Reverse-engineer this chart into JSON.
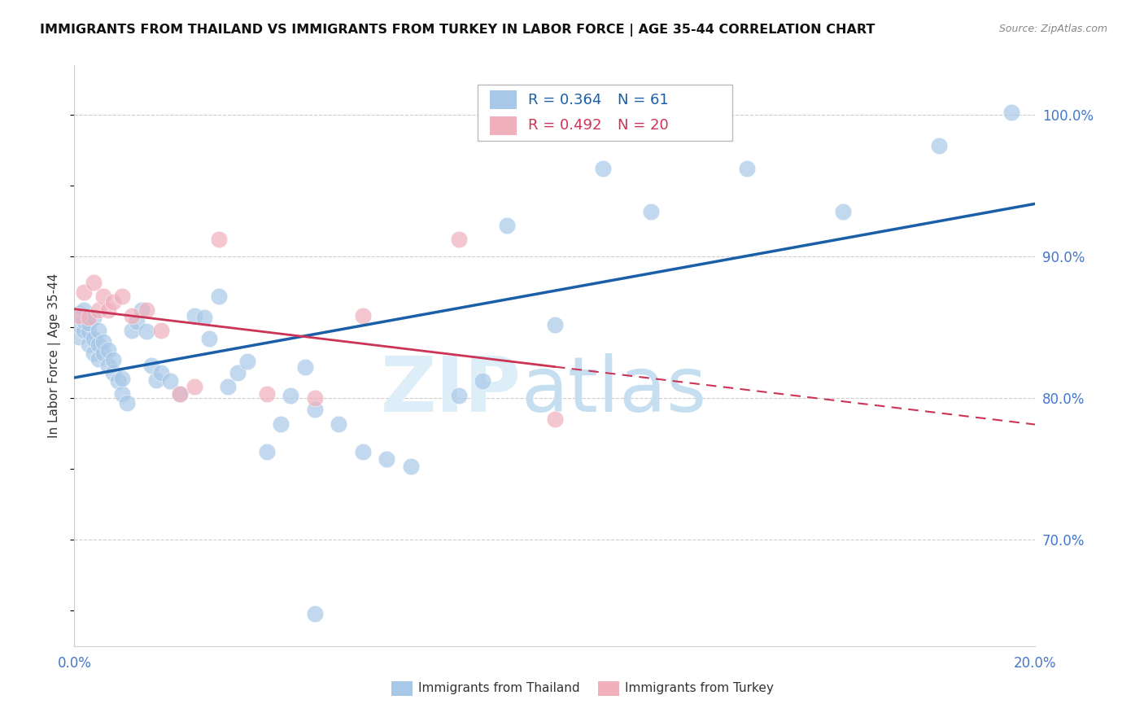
{
  "title": "IMMIGRANTS FROM THAILAND VS IMMIGRANTS FROM TURKEY IN LABOR FORCE | AGE 35-44 CORRELATION CHART",
  "source": "Source: ZipAtlas.com",
  "ylabel_left": "In Labor Force | Age 35-44",
  "x_min": 0.0,
  "x_max": 0.2,
  "y_min": 0.625,
  "y_max": 1.035,
  "right_y_ticks": [
    0.7,
    0.8,
    0.9,
    1.0
  ],
  "right_y_labels": [
    "70.0%",
    "80.0%",
    "90.0%",
    "100.0%"
  ],
  "x_ticks": [
    0.0,
    0.04,
    0.08,
    0.12,
    0.16,
    0.2
  ],
  "x_tick_labels": [
    "0.0%",
    "",
    "",
    "",
    "",
    "20.0%"
  ],
  "color_thailand": "#a8c8e8",
  "color_turkey": "#f0b0bc",
  "line_color_thailand": "#1a5fa8",
  "line_color_turkey": "#cc3355",
  "r_thailand": "0.364",
  "n_thailand": "61",
  "r_turkey": "0.492",
  "n_turkey": "20",
  "legend_label_thailand": "Immigrants from Thailand",
  "legend_label_turkey": "Immigrants from Turkey",
  "thailand_x": [
    0.001,
    0.001,
    0.001,
    0.002,
    0.002,
    0.002,
    0.003,
    0.003,
    0.003,
    0.004,
    0.004,
    0.004,
    0.005,
    0.005,
    0.005,
    0.006,
    0.006,
    0.007,
    0.007,
    0.008,
    0.008,
    0.009,
    0.01,
    0.01,
    0.011,
    0.012,
    0.013,
    0.014,
    0.015,
    0.016,
    0.017,
    0.018,
    0.02,
    0.022,
    0.025,
    0.027,
    0.028,
    0.03,
    0.032,
    0.034,
    0.036,
    0.04,
    0.043,
    0.045,
    0.048,
    0.05,
    0.055,
    0.06,
    0.065,
    0.07,
    0.08,
    0.085,
    0.09,
    0.1,
    0.11,
    0.12,
    0.14,
    0.16,
    0.18,
    0.195,
    0.05
  ],
  "thailand_y": [
    0.843,
    0.852,
    0.86,
    0.848,
    0.855,
    0.862,
    0.838,
    0.847,
    0.853,
    0.832,
    0.842,
    0.857,
    0.828,
    0.838,
    0.848,
    0.832,
    0.84,
    0.823,
    0.834,
    0.818,
    0.827,
    0.812,
    0.803,
    0.814,
    0.797,
    0.848,
    0.854,
    0.862,
    0.847,
    0.823,
    0.813,
    0.818,
    0.812,
    0.803,
    0.858,
    0.857,
    0.842,
    0.872,
    0.808,
    0.818,
    0.826,
    0.762,
    0.782,
    0.802,
    0.822,
    0.792,
    0.782,
    0.762,
    0.757,
    0.752,
    0.802,
    0.812,
    0.922,
    0.852,
    0.962,
    0.932,
    0.962,
    0.932,
    0.978,
    1.002,
    0.648
  ],
  "turkey_x": [
    0.001,
    0.002,
    0.003,
    0.004,
    0.005,
    0.006,
    0.007,
    0.008,
    0.01,
    0.012,
    0.015,
    0.018,
    0.022,
    0.025,
    0.03,
    0.04,
    0.05,
    0.06,
    0.08,
    0.1
  ],
  "turkey_y": [
    0.858,
    0.875,
    0.857,
    0.882,
    0.862,
    0.872,
    0.862,
    0.868,
    0.872,
    0.858,
    0.862,
    0.848,
    0.803,
    0.808,
    0.912,
    0.803,
    0.8,
    0.858,
    0.912,
    0.785
  ]
}
